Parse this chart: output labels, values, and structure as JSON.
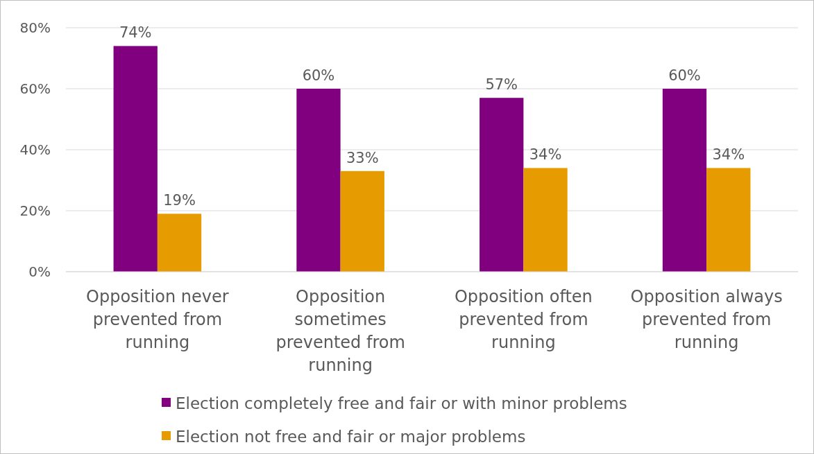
{
  "chart_data": {
    "type": "bar",
    "categories": [
      "Opposition never prevented from running",
      "Opposition sometimes prevented from running",
      "Opposition often prevented from running",
      "Opposition always prevented from running"
    ],
    "series": [
      {
        "name": "Election completely free and fair or with minor problems",
        "color": "#800080",
        "values": [
          74,
          60,
          57,
          60
        ],
        "value_labels": [
          "74%",
          "60%",
          "57%",
          "60%"
        ]
      },
      {
        "name": "Election not free and fair or major problems",
        "color": "#e69c00",
        "values": [
          19,
          33,
          34,
          34
        ],
        "value_labels": [
          "19%",
          "33%",
          "34%",
          "34%"
        ]
      }
    ],
    "ylim": [
      0,
      80
    ],
    "yticks": [
      {
        "value": 0,
        "label": "0%"
      },
      {
        "value": 20,
        "label": "20%"
      },
      {
        "value": 40,
        "label": "40%"
      },
      {
        "value": 60,
        "label": "60%"
      },
      {
        "value": 80,
        "label": "80%"
      }
    ],
    "grid": "y",
    "legend": "bottom"
  }
}
